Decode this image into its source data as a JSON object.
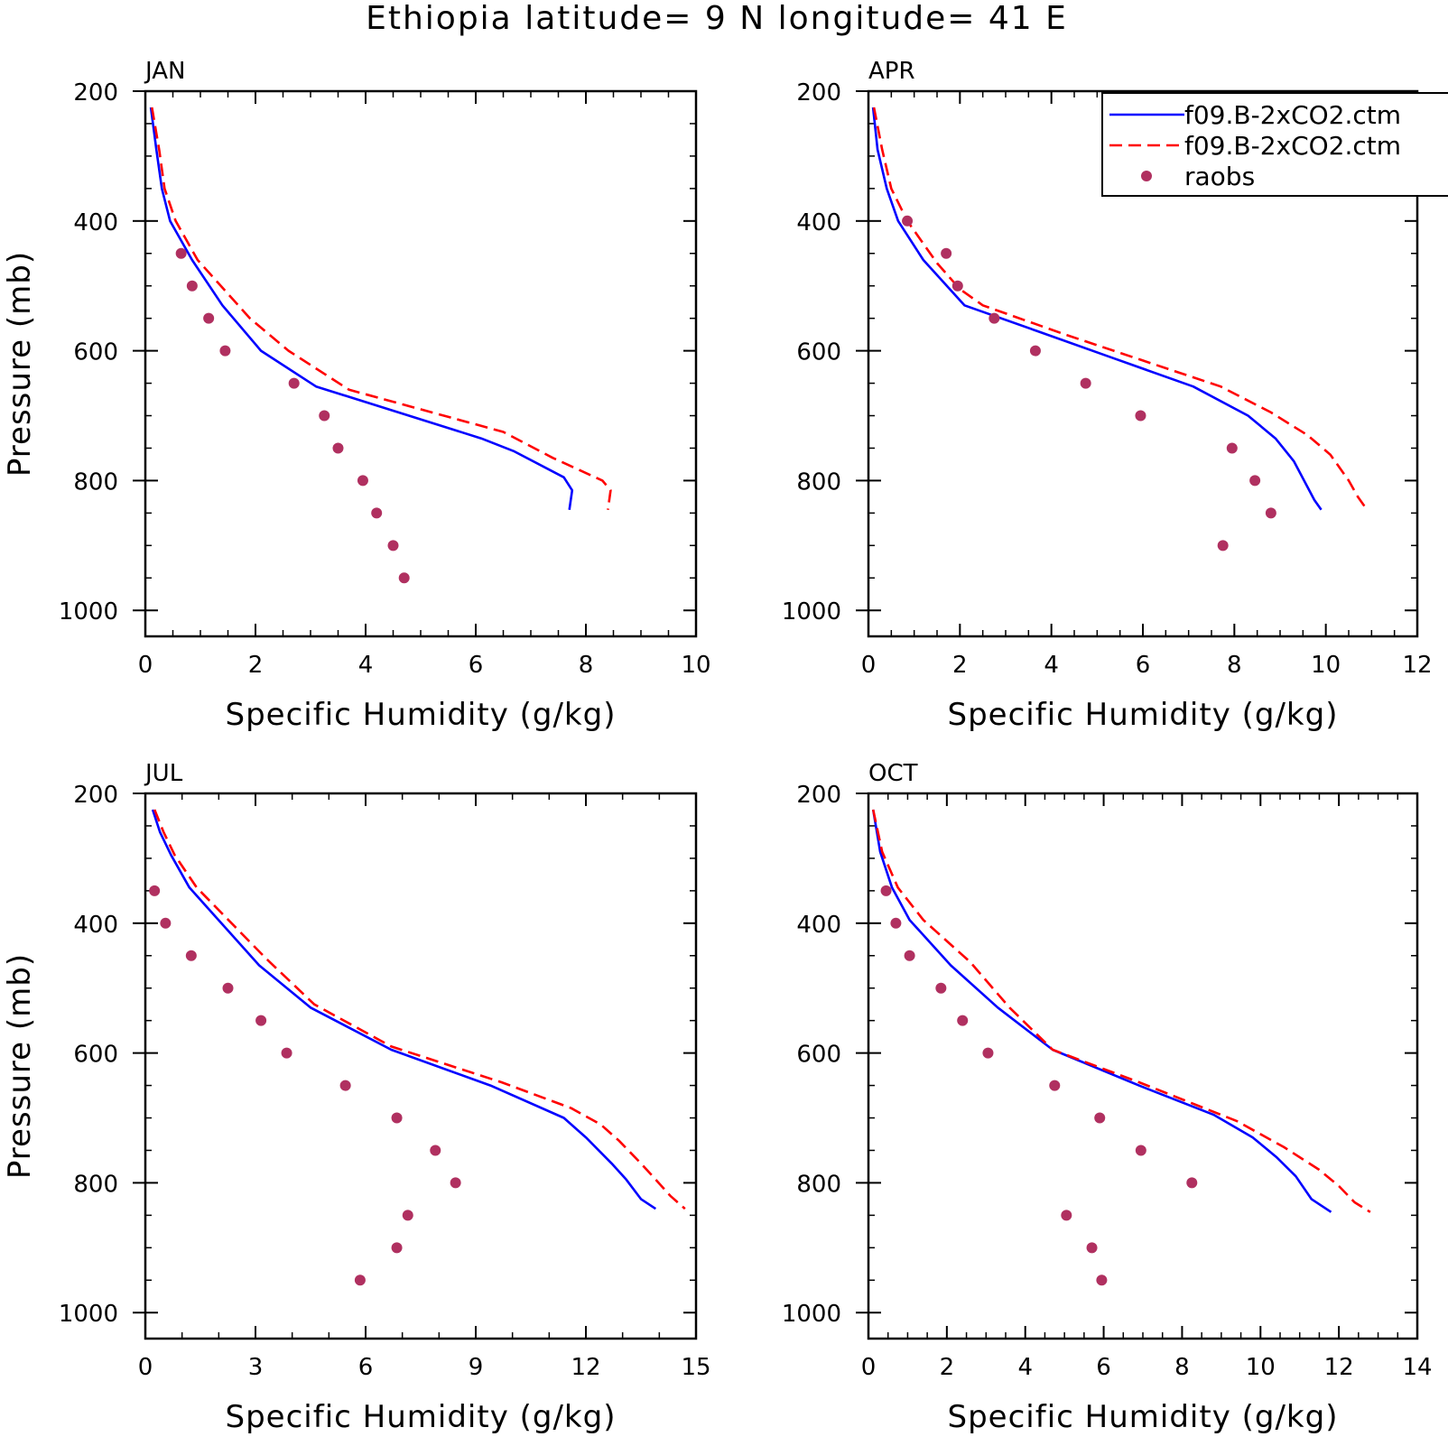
{
  "title": "Ethiopia  latitude= 9 N longitude= 41 E",
  "colors": {
    "model1": "#0000ff",
    "model2": "#ff0000",
    "raobs": "#b03060",
    "axis": "#000000"
  },
  "legend": {
    "entries": [
      {
        "label": "f09.B-2xCO2.ctm",
        "style": "solid",
        "color": "#0000ff"
      },
      {
        "label": "f09.B-2xCO2.ctm",
        "style": "dashed",
        "color": "#ff0000"
      },
      {
        "label": "raobs",
        "style": "marker",
        "color": "#b03060"
      }
    ]
  },
  "chart_data": [
    {
      "type": "line",
      "panel": "JAN",
      "xlabel": "Specific Humidity (g/kg)",
      "ylabel": "Pressure (mb)",
      "xlim": [
        0,
        10
      ],
      "ylim": [
        200,
        1040
      ],
      "xticks": [
        0,
        2,
        4,
        6,
        8,
        10
      ],
      "yticks": [
        200,
        400,
        600,
        800,
        1000
      ],
      "series": [
        {
          "style": "solid",
          "color": "#0000ff",
          "points": [
            [
              0.1,
              225
            ],
            [
              0.2,
              290
            ],
            [
              0.3,
              350
            ],
            [
              0.45,
              400
            ],
            [
              0.85,
              460
            ],
            [
              1.4,
              530
            ],
            [
              2.1,
              600
            ],
            [
              3.1,
              655
            ],
            [
              6.1,
              735
            ],
            [
              6.7,
              755
            ],
            [
              7.6,
              795
            ],
            [
              7.75,
              815
            ],
            [
              7.7,
              845
            ]
          ]
        },
        {
          "style": "dashed",
          "color": "#ff0000",
          "points": [
            [
              0.12,
              225
            ],
            [
              0.25,
              290
            ],
            [
              0.35,
              350
            ],
            [
              0.55,
              400
            ],
            [
              0.95,
              460
            ],
            [
              1.9,
              550
            ],
            [
              2.6,
              600
            ],
            [
              3.7,
              660
            ],
            [
              6.5,
              725
            ],
            [
              7.4,
              765
            ],
            [
              8.3,
              800
            ],
            [
              8.45,
              815
            ],
            [
              8.4,
              845
            ]
          ]
        },
        {
          "style": "marker",
          "color": "#b03060",
          "points": [
            [
              0.65,
              450
            ],
            [
              0.85,
              500
            ],
            [
              1.15,
              550
            ],
            [
              1.45,
              600
            ],
            [
              2.7,
              650
            ],
            [
              3.25,
              700
            ],
            [
              3.5,
              750
            ],
            [
              3.95,
              800
            ],
            [
              4.2,
              850
            ],
            [
              4.5,
              900
            ],
            [
              4.7,
              950
            ]
          ]
        }
      ]
    },
    {
      "type": "line",
      "panel": "APR",
      "xlabel": "Specific Humidity (g/kg)",
      "ylabel": "",
      "xlim": [
        0,
        12
      ],
      "ylim": [
        200,
        1040
      ],
      "xticks": [
        0,
        2,
        4,
        6,
        8,
        10,
        12
      ],
      "yticks": [
        200,
        400,
        600,
        800,
        1000
      ],
      "series": [
        {
          "style": "solid",
          "color": "#0000ff",
          "points": [
            [
              0.1,
              225
            ],
            [
              0.2,
              290
            ],
            [
              0.4,
              350
            ],
            [
              0.65,
              400
            ],
            [
              1.2,
              460
            ],
            [
              2.1,
              530
            ],
            [
              3.7,
              570
            ],
            [
              5.3,
              610
            ],
            [
              7.1,
              655
            ],
            [
              8.3,
              700
            ],
            [
              8.9,
              735
            ],
            [
              9.3,
              770
            ],
            [
              9.6,
              810
            ],
            [
              9.75,
              830
            ],
            [
              9.9,
              845
            ]
          ]
        },
        {
          "style": "dashed",
          "color": "#ff0000",
          "points": [
            [
              0.12,
              225
            ],
            [
              0.3,
              290
            ],
            [
              0.5,
              350
            ],
            [
              0.85,
              400
            ],
            [
              1.5,
              465
            ],
            [
              2.0,
              505
            ],
            [
              2.5,
              530
            ],
            [
              4.3,
              575
            ],
            [
              6.0,
              615
            ],
            [
              7.7,
              655
            ],
            [
              8.8,
              695
            ],
            [
              9.6,
              730
            ],
            [
              10.1,
              760
            ],
            [
              10.5,
              800
            ],
            [
              10.7,
              825
            ],
            [
              10.9,
              845
            ]
          ]
        },
        {
          "style": "marker",
          "color": "#b03060",
          "points": [
            [
              0.85,
              400
            ],
            [
              1.7,
              450
            ],
            [
              1.95,
              500
            ],
            [
              2.75,
              550
            ],
            [
              3.65,
              600
            ],
            [
              4.75,
              650
            ],
            [
              5.95,
              700
            ],
            [
              7.95,
              750
            ],
            [
              8.45,
              800
            ],
            [
              8.8,
              850
            ],
            [
              7.75,
              900
            ]
          ]
        }
      ]
    },
    {
      "type": "line",
      "panel": "JUL",
      "xlabel": "Specific Humidity (g/kg)",
      "ylabel": "Pressure (mb)",
      "xlim": [
        0,
        15
      ],
      "ylim": [
        200,
        1040
      ],
      "xticks": [
        0,
        3,
        6,
        9,
        12,
        15
      ],
      "yticks": [
        200,
        400,
        600,
        800,
        1000
      ],
      "series": [
        {
          "style": "solid",
          "color": "#0000ff",
          "points": [
            [
              0.2,
              225
            ],
            [
              0.4,
              260
            ],
            [
              0.7,
              295
            ],
            [
              1.2,
              345
            ],
            [
              3.1,
              465
            ],
            [
              4.5,
              530
            ],
            [
              6.7,
              595
            ],
            [
              9.4,
              650
            ],
            [
              11.4,
              700
            ],
            [
              12.0,
              730
            ],
            [
              12.7,
              770
            ],
            [
              13.1,
              795
            ],
            [
              13.5,
              825
            ],
            [
              13.9,
              840
            ]
          ]
        },
        {
          "style": "dashed",
          "color": "#ff0000",
          "points": [
            [
              0.25,
              225
            ],
            [
              0.5,
              260
            ],
            [
              0.8,
              295
            ],
            [
              1.4,
              345
            ],
            [
              3.3,
              455
            ],
            [
              4.6,
              525
            ],
            [
              6.7,
              590
            ],
            [
              9.7,
              645
            ],
            [
              11.6,
              685
            ],
            [
              12.4,
              710
            ],
            [
              12.9,
              735
            ],
            [
              13.5,
              770
            ],
            [
              13.9,
              795
            ],
            [
              14.3,
              820
            ],
            [
              14.7,
              840
            ]
          ]
        },
        {
          "style": "marker",
          "color": "#b03060",
          "points": [
            [
              0.25,
              350
            ],
            [
              0.55,
              400
            ],
            [
              1.25,
              450
            ],
            [
              2.25,
              500
            ],
            [
              3.15,
              550
            ],
            [
              3.85,
              600
            ],
            [
              5.45,
              650
            ],
            [
              6.85,
              700
            ],
            [
              7.9,
              750
            ],
            [
              8.45,
              800
            ],
            [
              7.15,
              850
            ],
            [
              6.85,
              900
            ],
            [
              5.85,
              950
            ]
          ]
        }
      ]
    },
    {
      "type": "line",
      "panel": "OCT",
      "xlabel": "Specific Humidity (g/kg)",
      "ylabel": "",
      "xlim": [
        0,
        14
      ],
      "ylim": [
        200,
        1040
      ],
      "xticks": [
        0,
        2,
        4,
        6,
        8,
        10,
        12,
        14
      ],
      "yticks": [
        200,
        400,
        600,
        800,
        1000
      ],
      "series": [
        {
          "style": "solid",
          "color": "#0000ff",
          "points": [
            [
              0.12,
              225
            ],
            [
              0.3,
              290
            ],
            [
              0.6,
              345
            ],
            [
              1.05,
              395
            ],
            [
              2.1,
              465
            ],
            [
              3.3,
              530
            ],
            [
              4.7,
              595
            ],
            [
              6.9,
              650
            ],
            [
              8.8,
              695
            ],
            [
              9.8,
              730
            ],
            [
              10.4,
              760
            ],
            [
              10.9,
              790
            ],
            [
              11.3,
              825
            ],
            [
              11.8,
              845
            ]
          ]
        },
        {
          "style": "dashed",
          "color": "#ff0000",
          "points": [
            [
              0.12,
              225
            ],
            [
              0.35,
              290
            ],
            [
              0.75,
              345
            ],
            [
              1.4,
              395
            ],
            [
              2.6,
              460
            ],
            [
              3.6,
              530
            ],
            [
              4.7,
              595
            ],
            [
              6.9,
              645
            ],
            [
              9.4,
              705
            ],
            [
              10.6,
              745
            ],
            [
              11.5,
              780
            ],
            [
              12.0,
              805
            ],
            [
              12.4,
              830
            ],
            [
              12.8,
              845
            ]
          ]
        },
        {
          "style": "marker",
          "color": "#b03060",
          "points": [
            [
              0.45,
              350
            ],
            [
              0.7,
              400
            ],
            [
              1.05,
              450
            ],
            [
              1.85,
              500
            ],
            [
              2.4,
              550
            ],
            [
              3.05,
              600
            ],
            [
              4.75,
              650
            ],
            [
              5.9,
              700
            ],
            [
              6.95,
              750
            ],
            [
              8.25,
              800
            ],
            [
              5.05,
              850
            ],
            [
              5.7,
              900
            ],
            [
              5.95,
              950
            ]
          ]
        }
      ]
    }
  ]
}
